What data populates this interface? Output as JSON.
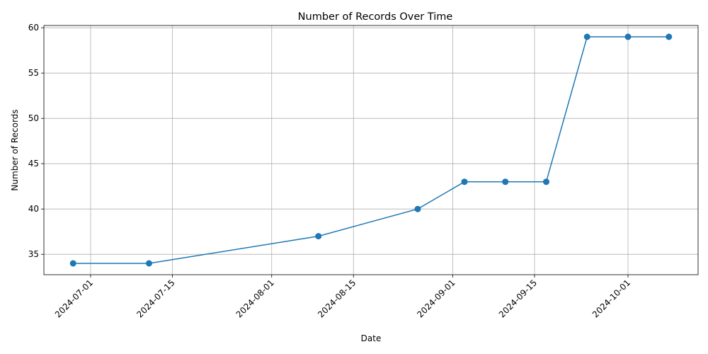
{
  "chart_data": {
    "type": "line",
    "title": "Number of Records Over Time",
    "xlabel": "Date",
    "ylabel": "Number of Records",
    "x": [
      "2024-06-28",
      "2024-07-11",
      "2024-08-09",
      "2024-08-26",
      "2024-09-03",
      "2024-09-10",
      "2024-09-17",
      "2024-09-24",
      "2024-10-01",
      "2024-10-08"
    ],
    "series": [
      {
        "values": [
          34,
          34,
          37,
          40,
          43,
          43,
          43,
          59,
          59,
          59
        ],
        "color": "#1f77b4"
      }
    ],
    "xticks": [
      "2024-07-01",
      "2024-07-15",
      "2024-08-01",
      "2024-08-15",
      "2024-09-01",
      "2024-09-15",
      "2024-10-01"
    ],
    "yticks": [
      35,
      40,
      45,
      50,
      55,
      60
    ],
    "xlim": [
      "2024-06-23",
      "2024-10-13"
    ],
    "ylim": [
      32.75,
      60.25
    ],
    "grid": true,
    "marker": "circle",
    "x_tick_rotation_deg": 45
  }
}
